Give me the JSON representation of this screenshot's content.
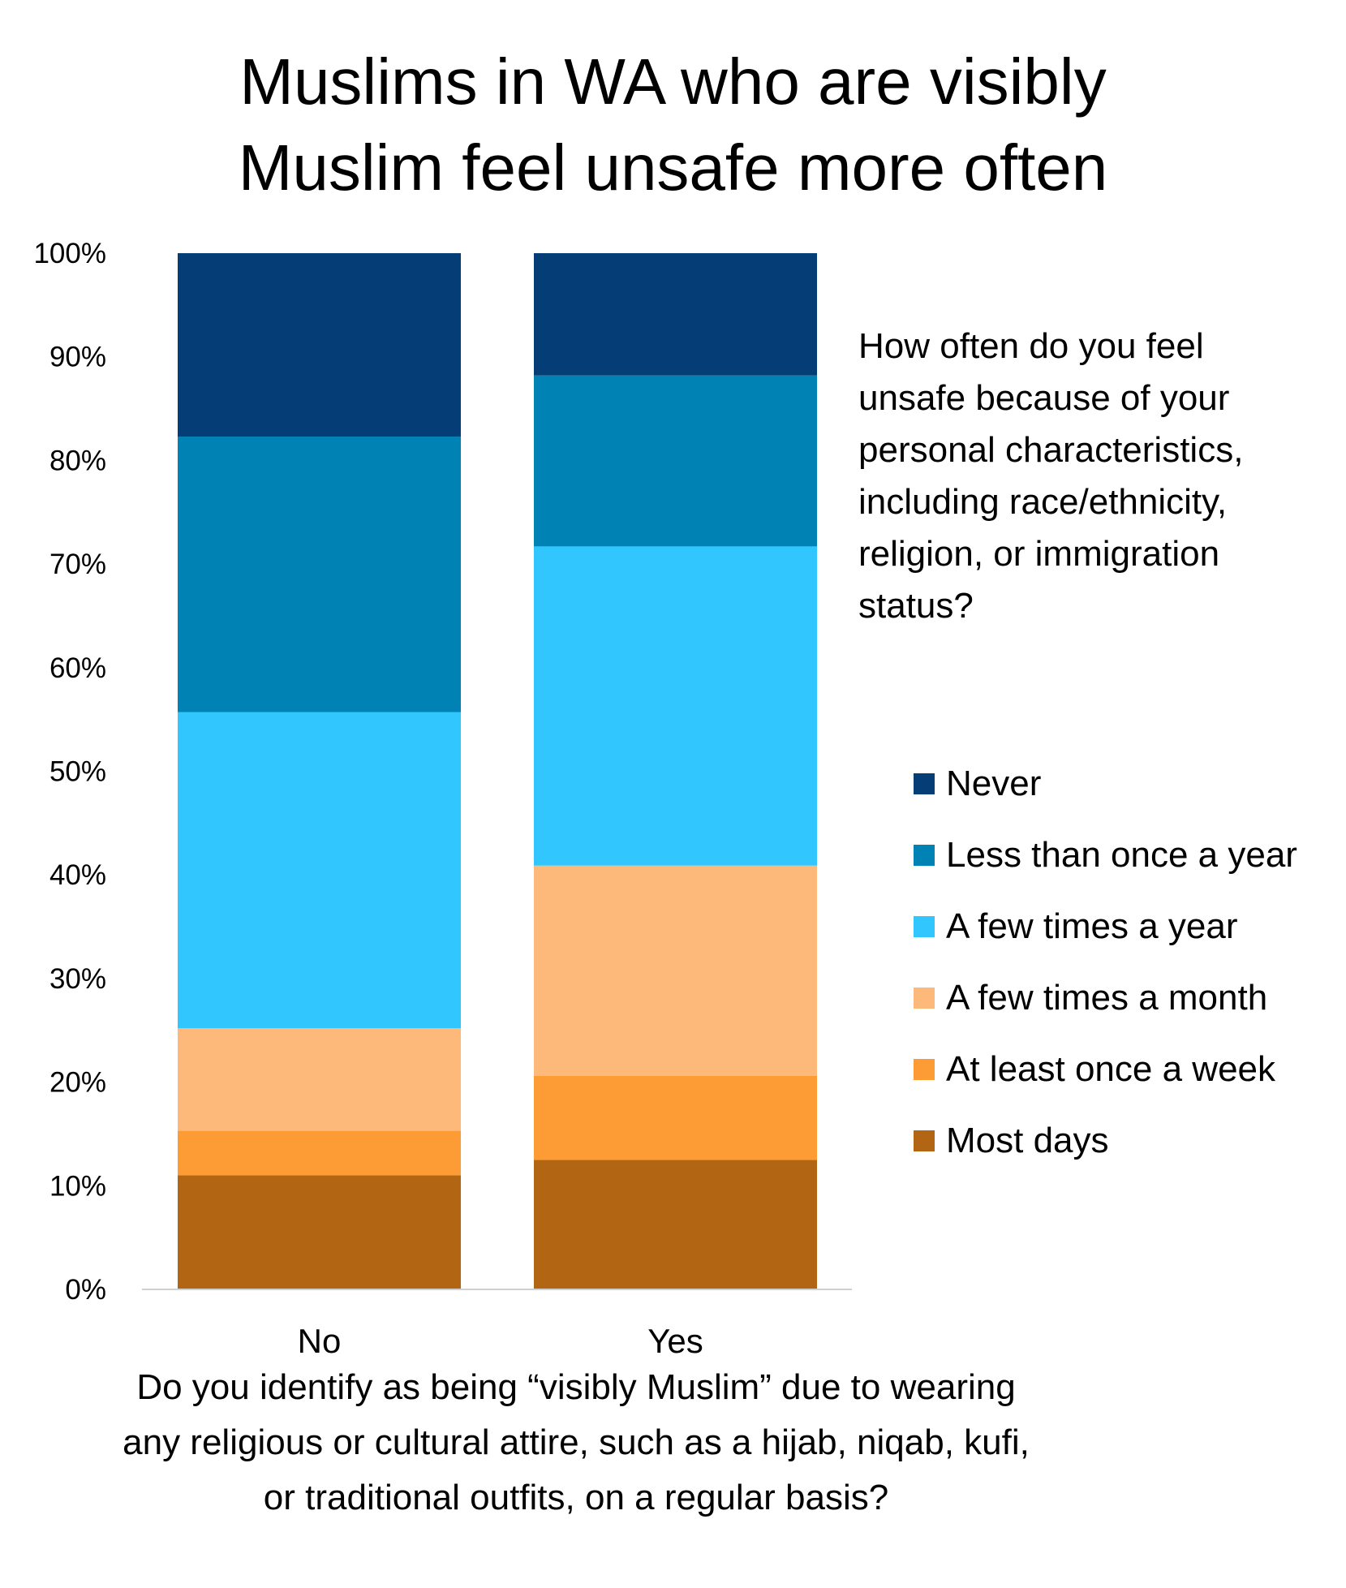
{
  "chart_data": {
    "type": "bar",
    "stacked": true,
    "title_lines": [
      "Muslims in WA who are visibly",
      "Muslim feel unsafe more often"
    ],
    "legend_title_lines": [
      "How often do you feel",
      "unsafe because of your",
      "personal characteristics,",
      "including race/ethnicity,",
      "religion, or immigration",
      "status?"
    ],
    "xlabel_lines": [
      "Do you identify as being “visibly Muslim” due to wearing",
      "any religious or cultural attire, such as a hijab, niqab, kufi,",
      "or traditional outfits, on a regular basis?"
    ],
    "categories": [
      "No",
      "Yes"
    ],
    "y_ticks": [
      "0%",
      "10%",
      "20%",
      "30%",
      "40%",
      "50%",
      "60%",
      "70%",
      "80%",
      "90%",
      "100%"
    ],
    "ylim": [
      0,
      100
    ],
    "grid": false,
    "legend_position": "right",
    "series": [
      {
        "name": "Most days",
        "color": "#B26512",
        "values": [
          11,
          12.5
        ]
      },
      {
        "name": "At least once a week",
        "color": "#FD9C34",
        "values": [
          4.3,
          8.1
        ]
      },
      {
        "name": "A few times a month",
        "color": "#FDB97A",
        "values": [
          9.9,
          20.3
        ]
      },
      {
        "name": "A few times a year",
        "color": "#31C7FE",
        "values": [
          30.5,
          30.8
        ]
      },
      {
        "name": "Less than once a year",
        "color": "#0082B5",
        "values": [
          26.6,
          16.5
        ]
      },
      {
        "name": "Never",
        "color": "#053E76",
        "values": [
          17.7,
          11.8
        ]
      }
    ]
  }
}
